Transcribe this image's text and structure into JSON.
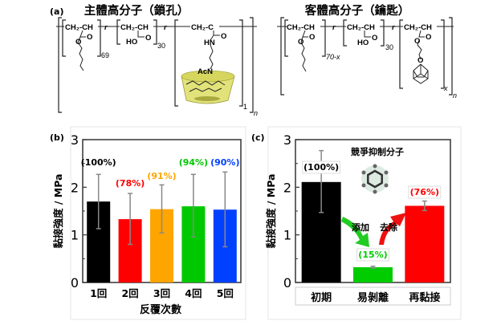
{
  "panel_a": {
    "label": "(a)",
    "host": {
      "title": "主體高分子（鎖孔）",
      "unit1_backbone": "CH₂-CH",
      "unit1_subscript": "69",
      "unit2_backbone": "CH₂-CH",
      "unit2_group": "HO",
      "unit2_subscript": "30",
      "unit3_backbone": "CH₂-C",
      "unit3_amide": "HN",
      "unit3_linker": "AcN",
      "unit3_subscript": "1",
      "random_marker": "r",
      "polymer_subscript": "n"
    },
    "guest": {
      "title": "客體高分子（鑰匙）",
      "unit1_backbone": "CH₂-CH",
      "unit1_subscript": "70-x",
      "unit2_backbone": "CH₂-CH",
      "unit2_group": "HO",
      "unit2_subscript": "30",
      "unit3_backbone": "CH₂-CH",
      "unit3_subscript": "x",
      "random_marker": "r",
      "polymer_subscript": "n"
    }
  },
  "chart_data": [
    {
      "panel_label": "(b)",
      "type": "bar",
      "categories": [
        "1回",
        "2回",
        "3回",
        "4回",
        "5回"
      ],
      "values": [
        1.7,
        1.33,
        1.54,
        1.6,
        1.53
      ],
      "error_low": [
        1.13,
        0.8,
        1.04,
        0.96,
        0.75
      ],
      "error_high": [
        2.27,
        1.87,
        2.05,
        2.27,
        2.32
      ],
      "data_labels": [
        "(100%)",
        "(78%)",
        "(91%)",
        "(94%)",
        "(90%)"
      ],
      "colors": [
        "#000000",
        "#ff0000",
        "#ffa500",
        "#00c800",
        "#0040ff"
      ],
      "label_colors": [
        "#000000",
        "#ff0000",
        "#ffa500",
        "#00c800",
        "#0040ff"
      ],
      "xlabel": "反覆次數",
      "ylabel": "黏接強度 / MPa",
      "ylim": [
        0,
        3
      ],
      "yticks": [
        "0",
        "1",
        "2",
        "3"
      ],
      "grid": false
    },
    {
      "panel_label": "(c)",
      "type": "bar",
      "categories": [
        "初期",
        "易剝離",
        "再黏接"
      ],
      "values": [
        2.11,
        0.32,
        1.61
      ],
      "error_low": [
        1.47,
        0.3,
        1.51
      ],
      "error_high": [
        2.77,
        0.34,
        1.71
      ],
      "data_labels": [
        "(100%)",
        "(15%)",
        "(76%)"
      ],
      "colors": [
        "#000000",
        "#00cc00",
        "#ff0000"
      ],
      "label_colors": [
        "#000000",
        "#00cc00",
        "#ff0000"
      ],
      "xlabel": "",
      "ylabel": "黏接強度 / MPa",
      "ylim": [
        0,
        3
      ],
      "yticks": [
        "0",
        "1",
        "2",
        "3"
      ],
      "grid": false,
      "annotations": {
        "inhibitor": "競爭抑制分子",
        "add": "添加",
        "remove": "去除"
      }
    }
  ]
}
